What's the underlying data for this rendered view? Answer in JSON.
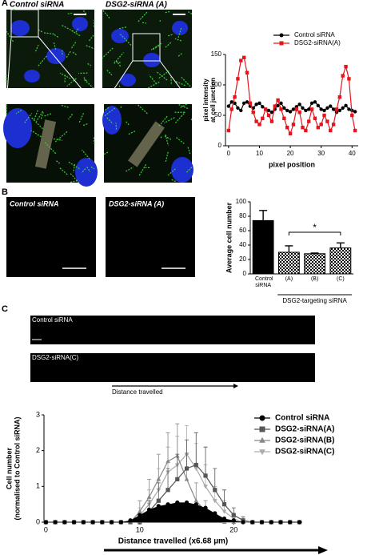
{
  "labels": {
    "panel_a": "A",
    "panel_b": "B",
    "panel_c": "C",
    "a_control": "Control siRNA",
    "a_dsg2": "DSG2-siRNA (A)",
    "b_control": "Control siRNA",
    "b_dsg2": "DSG2-siRNA (A)",
    "c_control": "Control siRNA",
    "c_dsg2": "DSG2-siRNA(C)",
    "c_arrow": "Distance travelled"
  },
  "chart_data": [
    {
      "type": "line",
      "xlabel": "pixel position",
      "ylabel": [
        "pixel intensity",
        "at cell junction"
      ],
      "xlim": [
        -1,
        42
      ],
      "ylim": [
        0,
        150
      ],
      "xticks": [
        0,
        10,
        20,
        30,
        40
      ],
      "yticks": [
        0,
        50,
        100,
        150
      ],
      "legend": "top",
      "x": [
        0,
        1,
        2,
        3,
        4,
        5,
        6,
        7,
        8,
        9,
        10,
        11,
        12,
        13,
        14,
        15,
        16,
        17,
        18,
        19,
        20,
        21,
        22,
        23,
        24,
        25,
        26,
        27,
        28,
        29,
        30,
        31,
        32,
        33,
        34,
        35,
        36,
        37,
        38,
        39,
        40,
        41
      ],
      "series": [
        {
          "name": "Control siRNA",
          "color": "#000000",
          "marker": "circle",
          "values": [
            65,
            72,
            70,
            62,
            58,
            70,
            72,
            65,
            62,
            68,
            70,
            64,
            60,
            58,
            55,
            60,
            66,
            70,
            62,
            58,
            56,
            60,
            64,
            68,
            62,
            58,
            60,
            70,
            72,
            66,
            60,
            58,
            62,
            65,
            60,
            55,
            58,
            62,
            66,
            60,
            58,
            56
          ]
        },
        {
          "name": "DSG2-siRNA(A)",
          "color": "#e8141c",
          "marker": "square",
          "values": [
            25,
            60,
            80,
            110,
            140,
            145,
            120,
            70,
            55,
            40,
            35,
            45,
            60,
            50,
            40,
            65,
            75,
            60,
            45,
            30,
            20,
            35,
            60,
            55,
            30,
            25,
            40,
            60,
            45,
            30,
            35,
            50,
            40,
            25,
            35,
            60,
            80,
            115,
            130,
            110,
            50,
            25
          ]
        }
      ]
    },
    {
      "type": "bar",
      "ylabel": "Average cell number",
      "ylim": [
        0,
        100
      ],
      "yticks": [
        0,
        20,
        40,
        60,
        80,
        100
      ],
      "categories": [
        "Control siRNA",
        "(A)",
        "(B)",
        "(C)"
      ],
      "values": [
        74,
        30,
        28,
        36
      ],
      "errors": [
        14,
        9,
        1,
        7
      ],
      "fills": [
        "solid",
        "checker",
        "checker",
        "checker"
      ],
      "color": "#000000",
      "group_label": "DSG2-targeting siRNA",
      "annotation": "*"
    },
    {
      "type": "line",
      "xlabel": "Distance travelled (x6.68 µm)",
      "ylabel": [
        "Cell number",
        "(normalised to Control siRNA)"
      ],
      "xlim": [
        -0.2,
        27.3
      ],
      "ylim": [
        0,
        3
      ],
      "xticks": [
        0,
        10,
        20
      ],
      "yticks": [
        0,
        1,
        2,
        3
      ],
      "legend": "right",
      "x": [
        0,
        1,
        2,
        3,
        4,
        5,
        6,
        7,
        8,
        9,
        10,
        11,
        12,
        13,
        14,
        15,
        16,
        17,
        18,
        19,
        20,
        21,
        22,
        23,
        24,
        25,
        26,
        27
      ],
      "series": [
        {
          "name": "Control siRNA",
          "color": "#000000",
          "marker": "circle",
          "filled": true,
          "values": [
            0,
            0,
            0,
            0,
            0,
            0,
            0,
            0,
            0,
            0.05,
            0.2,
            0.35,
            0.45,
            0.5,
            0.55,
            0.55,
            0.5,
            0.4,
            0.25,
            0.1,
            0.05,
            0,
            0,
            0,
            0,
            0,
            0,
            0
          ],
          "errors": [
            0,
            0,
            0,
            0,
            0,
            0,
            0,
            0,
            0,
            0,
            0,
            0,
            0,
            0,
            0,
            0,
            0,
            0,
            0,
            0,
            0,
            0,
            0,
            0,
            0,
            0,
            0,
            0
          ]
        },
        {
          "name": "DSG2-siRNA(A)",
          "color": "#555555",
          "marker": "square",
          "values": [
            0,
            0,
            0,
            0,
            0,
            0,
            0,
            0,
            0,
            0,
            0,
            0.3,
            0.6,
            0.9,
            1.2,
            1.5,
            1.6,
            1.3,
            0.9,
            0.5,
            0.2,
            0.05,
            0,
            0,
            0,
            0,
            0,
            0
          ],
          "errors": [
            0,
            0,
            0,
            0,
            0,
            0,
            0,
            0,
            0,
            0,
            0,
            0.3,
            0.5,
            0.6,
            0.7,
            0.8,
            0.9,
            0.8,
            0.6,
            0.4,
            0.2,
            0.1,
            0,
            0,
            0,
            0,
            0,
            0
          ]
        },
        {
          "name": "DSG2-siRNA(B)",
          "color": "#888888",
          "marker": "triangle",
          "values": [
            0,
            0,
            0,
            0,
            0,
            0,
            0,
            0,
            0,
            0,
            0.3,
            0.7,
            1.2,
            1.7,
            1.85,
            1.2,
            0.6,
            0.3,
            0.1,
            0,
            0,
            0,
            0,
            0,
            0,
            0,
            0,
            0
          ],
          "errors": [
            0,
            0,
            0,
            0,
            0,
            0,
            0,
            0,
            0,
            0,
            0.3,
            0.5,
            0.7,
            0.8,
            0.9,
            0.7,
            0.5,
            0.3,
            0.1,
            0,
            0,
            0,
            0,
            0,
            0,
            0,
            0,
            0
          ]
        },
        {
          "name": "DSG2-siRNA(C)",
          "color": "#aaaaaa",
          "marker": "triangle-down",
          "values": [
            0,
            0,
            0,
            0,
            0,
            0,
            0,
            0,
            0,
            0,
            0.2,
            0.5,
            0.9,
            1.4,
            1.6,
            1.9,
            1.5,
            1.0,
            0.6,
            0.3,
            0.1,
            0,
            0,
            0,
            0,
            0,
            0,
            0
          ],
          "errors": [
            0,
            0,
            0,
            0,
            0,
            0,
            0,
            0,
            0,
            0,
            0.2,
            0.4,
            0.6,
            0.7,
            0.8,
            0.8,
            0.7,
            0.6,
            0.4,
            0.3,
            0.1,
            0,
            0,
            0,
            0,
            0,
            0,
            0
          ]
        }
      ]
    }
  ]
}
